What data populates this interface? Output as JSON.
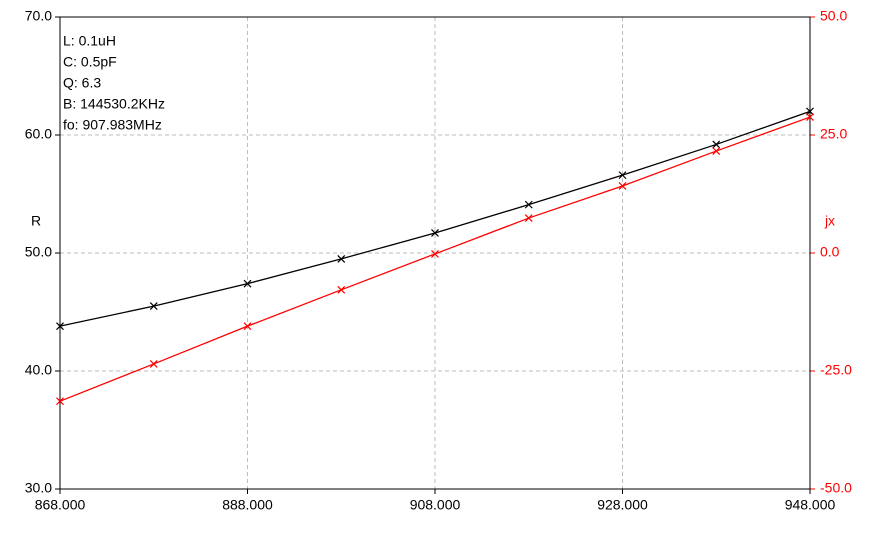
{
  "chart_data": {
    "type": "line",
    "x": [
      868,
      878,
      888,
      898,
      908,
      918,
      928,
      938,
      948
    ],
    "xlim": [
      868,
      948
    ],
    "xticks": [
      {
        "value": 868,
        "label": "868.000"
      },
      {
        "value": 888,
        "label": "888.000"
      },
      {
        "value": 908,
        "label": "908.000"
      },
      {
        "value": 928,
        "label": "928.000"
      },
      {
        "value": 948,
        "label": "948.000"
      }
    ],
    "ylim": [
      30,
      70
    ],
    "yticks": [
      {
        "value": 30,
        "label": "30.0"
      },
      {
        "value": 40,
        "label": "40.0"
      },
      {
        "value": 50,
        "label": "50.0"
      },
      {
        "value": 60,
        "label": "60.0"
      },
      {
        "value": 70,
        "label": "70.0"
      }
    ],
    "y2lim": [
      -50,
      50
    ],
    "y2ticks": [
      {
        "value": -50,
        "label": "-50.0"
      },
      {
        "value": -25,
        "label": "-25.0"
      },
      {
        "value": 0,
        "label": "0.0"
      },
      {
        "value": 25,
        "label": "25.0"
      },
      {
        "value": 50,
        "label": "50.0"
      }
    ],
    "ylabel": "R",
    "y2label": "jx",
    "grid": true,
    "annotations": [
      "L: 0.1uH",
      "C: 0.5pF",
      "Q: 6.3",
      "B: 144530.2KHz",
      "fo: 907.983MHz"
    ],
    "series": [
      {
        "name": "R",
        "color": "#000000",
        "values": [
          43.8,
          45.5,
          47.4,
          49.5,
          51.7,
          54.1,
          56.6,
          59.2,
          62.0
        ]
      },
      {
        "name": "jx",
        "color": "#ff0000",
        "axis": "y2",
        "values": [
          -31.4,
          -23.5,
          -15.5,
          -7.8,
          -0.2,
          7.4,
          14.2,
          21.6,
          28.8
        ]
      }
    ]
  }
}
